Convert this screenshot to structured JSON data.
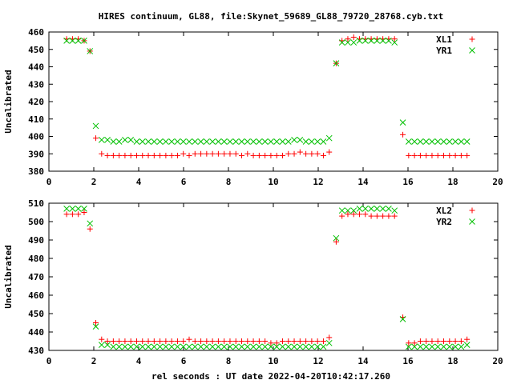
{
  "title": "HIRES continuum, GL88, file:Skynet_59689_GL88_79720_28768.cyb.txt",
  "xlabel": "rel seconds : UT date 2022-04-20T10:42:17.260",
  "colors": {
    "red": "#ff0000",
    "green": "#00c000"
  },
  "chart_data": [
    {
      "type": "scatter",
      "ylabel": "Uncalibrated",
      "xlim": [
        0,
        20
      ],
      "ylim": [
        380,
        460
      ],
      "xticks": [
        0,
        2,
        4,
        6,
        8,
        10,
        12,
        14,
        16,
        18,
        20
      ],
      "yticks": [
        380,
        390,
        400,
        410,
        420,
        430,
        440,
        450,
        460
      ],
      "legend_position": "top-right",
      "series": [
        {
          "name": "XL1",
          "marker": "plus",
          "color": "#ff0000",
          "x": [
            0.79,
            1.05,
            1.31,
            1.57,
            1.83,
            2.09,
            2.35,
            2.61,
            2.87,
            3.13,
            3.39,
            3.65,
            3.91,
            4.17,
            4.43,
            4.69,
            4.95,
            5.21,
            5.47,
            5.73,
            5.99,
            6.25,
            6.51,
            6.77,
            7.03,
            7.29,
            7.55,
            7.81,
            8.07,
            8.33,
            8.59,
            8.85,
            9.11,
            9.37,
            9.63,
            9.89,
            10.15,
            10.41,
            10.67,
            10.93,
            11.19,
            11.45,
            11.71,
            11.97,
            12.23,
            12.49,
            12.8,
            13.06,
            13.32,
            13.58,
            13.84,
            14.1,
            14.36,
            14.62,
            14.88,
            15.14,
            15.4,
            15.77,
            16.03,
            16.29,
            16.55,
            16.81,
            17.07,
            17.33,
            17.59,
            17.85,
            18.11,
            18.37,
            18.63
          ],
          "y": [
            456,
            456,
            456,
            455,
            449,
            399,
            390,
            389,
            389,
            389,
            389,
            389,
            389,
            389,
            389,
            389,
            389,
            389,
            389,
            389,
            390,
            389,
            390,
            390,
            390,
            390,
            390,
            390,
            390,
            390,
            389,
            390,
            389,
            389,
            389,
            389,
            389,
            389,
            390,
            390,
            391,
            390,
            390,
            390,
            389,
            391,
            442,
            455,
            456,
            457,
            456,
            456,
            456,
            456,
            456,
            456,
            456,
            401,
            389,
            389,
            389,
            389,
            389,
            389,
            389,
            389,
            389,
            389,
            389
          ]
        },
        {
          "name": "YR1",
          "marker": "cross",
          "color": "#00c000",
          "x": [
            0.79,
            1.05,
            1.31,
            1.57,
            1.83,
            2.09,
            2.35,
            2.61,
            2.87,
            3.13,
            3.39,
            3.65,
            3.91,
            4.17,
            4.43,
            4.69,
            4.95,
            5.21,
            5.47,
            5.73,
            5.99,
            6.25,
            6.51,
            6.77,
            7.03,
            7.29,
            7.55,
            7.81,
            8.07,
            8.33,
            8.59,
            8.85,
            9.11,
            9.37,
            9.63,
            9.89,
            10.15,
            10.41,
            10.67,
            10.93,
            11.19,
            11.45,
            11.71,
            11.97,
            12.23,
            12.49,
            12.8,
            13.06,
            13.32,
            13.58,
            13.84,
            14.1,
            14.36,
            14.62,
            14.88,
            15.14,
            15.4,
            15.77,
            16.03,
            16.29,
            16.55,
            16.81,
            17.07,
            17.33,
            17.59,
            17.85,
            18.11,
            18.37,
            18.63
          ],
          "y": [
            455,
            455,
            455,
            455,
            449,
            406,
            398,
            398,
            397,
            397,
            398,
            398,
            397,
            397,
            397,
            397,
            397,
            397,
            397,
            397,
            397,
            397,
            397,
            397,
            397,
            397,
            397,
            397,
            397,
            397,
            397,
            397,
            397,
            397,
            397,
            397,
            397,
            397,
            397,
            398,
            398,
            397,
            397,
            397,
            397,
            399,
            442,
            454,
            454,
            454,
            455,
            455,
            455,
            455,
            455,
            455,
            454,
            408,
            397,
            397,
            397,
            397,
            397,
            397,
            397,
            397,
            397,
            397,
            397
          ]
        }
      ]
    },
    {
      "type": "scatter",
      "ylabel": "Uncalibrated",
      "xlim": [
        0,
        20
      ],
      "ylim": [
        430,
        510
      ],
      "xticks": [
        0,
        2,
        4,
        6,
        8,
        10,
        12,
        14,
        16,
        18,
        20
      ],
      "yticks": [
        430,
        440,
        450,
        460,
        470,
        480,
        490,
        500,
        510
      ],
      "legend_position": "top-right",
      "series": [
        {
          "name": "XL2",
          "marker": "plus",
          "color": "#ff0000",
          "x": [
            0.79,
            1.05,
            1.31,
            1.57,
            1.83,
            2.09,
            2.35,
            2.61,
            2.87,
            3.13,
            3.39,
            3.65,
            3.91,
            4.17,
            4.43,
            4.69,
            4.95,
            5.21,
            5.47,
            5.73,
            5.99,
            6.25,
            6.51,
            6.77,
            7.03,
            7.29,
            7.55,
            7.81,
            8.07,
            8.33,
            8.59,
            8.85,
            9.11,
            9.37,
            9.63,
            9.89,
            10.15,
            10.41,
            10.67,
            10.93,
            11.19,
            11.45,
            11.71,
            11.97,
            12.23,
            12.49,
            12.8,
            13.06,
            13.32,
            13.58,
            13.84,
            14.1,
            14.36,
            14.62,
            14.88,
            15.14,
            15.4,
            15.77,
            16.03,
            16.29,
            16.55,
            16.81,
            17.07,
            17.33,
            17.59,
            17.85,
            18.11,
            18.37,
            18.63
          ],
          "y": [
            504,
            504,
            504,
            505,
            496,
            445,
            436,
            435,
            435,
            435,
            435,
            435,
            435,
            435,
            435,
            435,
            435,
            435,
            435,
            435,
            435,
            436,
            435,
            435,
            435,
            435,
            435,
            435,
            435,
            435,
            435,
            435,
            435,
            435,
            435,
            434,
            434,
            435,
            435,
            435,
            435,
            435,
            435,
            435,
            435,
            437,
            489,
            503,
            504,
            504,
            504,
            504,
            503,
            503,
            503,
            503,
            503,
            448,
            434,
            434,
            435,
            435,
            435,
            435,
            435,
            435,
            435,
            435,
            436
          ]
        },
        {
          "name": "YR2",
          "marker": "cross",
          "color": "#00c000",
          "x": [
            0.79,
            1.05,
            1.31,
            1.57,
            1.83,
            2.09,
            2.35,
            2.61,
            2.87,
            3.13,
            3.39,
            3.65,
            3.91,
            4.17,
            4.43,
            4.69,
            4.95,
            5.21,
            5.47,
            5.73,
            5.99,
            6.25,
            6.51,
            6.77,
            7.03,
            7.29,
            7.55,
            7.81,
            8.07,
            8.33,
            8.59,
            8.85,
            9.11,
            9.37,
            9.63,
            9.89,
            10.15,
            10.41,
            10.67,
            10.93,
            11.19,
            11.45,
            11.71,
            11.97,
            12.23,
            12.49,
            12.8,
            13.06,
            13.32,
            13.58,
            13.84,
            14.1,
            14.36,
            14.62,
            14.88,
            15.14,
            15.4,
            15.77,
            16.03,
            16.29,
            16.55,
            16.81,
            17.07,
            17.33,
            17.59,
            17.85,
            18.11,
            18.37,
            18.63
          ],
          "y": [
            507,
            507,
            507,
            507,
            499,
            443,
            433,
            433,
            432,
            432,
            432,
            432,
            432,
            432,
            432,
            432,
            432,
            432,
            432,
            432,
            432,
            432,
            432,
            432,
            432,
            432,
            432,
            432,
            432,
            432,
            432,
            432,
            432,
            432,
            432,
            432,
            432,
            432,
            432,
            432,
            432,
            432,
            432,
            432,
            432,
            434,
            491,
            506,
            506,
            506,
            507,
            507,
            507,
            507,
            507,
            507,
            506,
            447,
            432,
            432,
            432,
            432,
            432,
            432,
            432,
            432,
            432,
            432,
            433
          ]
        }
      ]
    }
  ]
}
